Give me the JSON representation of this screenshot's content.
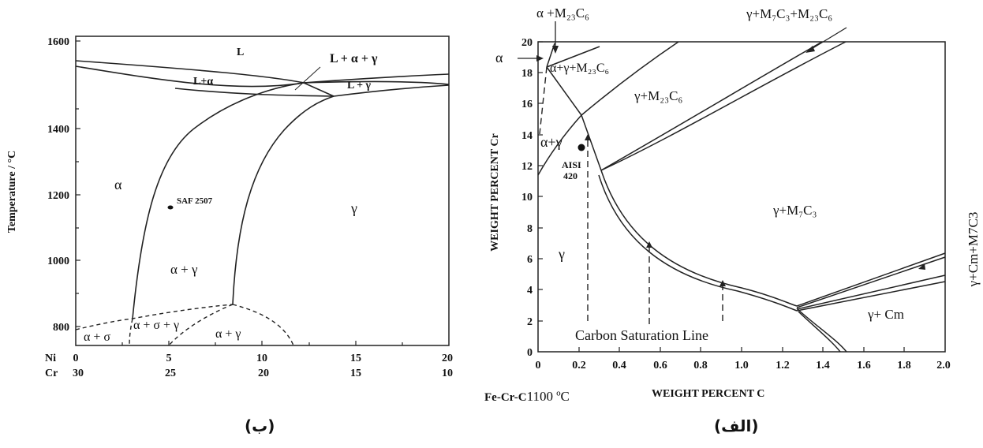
{
  "left_diagram": {
    "caption": "(ب)",
    "ylabel": "Temperature / °C",
    "y_ticks": [
      "800",
      "1000",
      "1200",
      "1400",
      "1600"
    ],
    "ni_label": "Ni",
    "cr_label": "Cr",
    "ni_ticks": [
      "0",
      "5",
      "10",
      "15",
      "20"
    ],
    "cr_ticks": [
      "30",
      "25",
      "20",
      "15",
      "10"
    ],
    "regions": {
      "L": "L",
      "L_alpha": "L+α",
      "L_alpha_gamma": "L + α + γ",
      "L_gamma": "L + γ",
      "alpha": "α",
      "gamma": "γ",
      "alpha_gamma": "α + γ",
      "alpha_sigma_gamma": "α + σ + γ",
      "alpha_sigma": "α + σ",
      "alpha_gamma_low": "α + γ"
    },
    "point_label": "SAF 2507"
  },
  "right_diagram": {
    "caption": "(الف)",
    "ylabel": "WEIGHT PERCENT Cr",
    "xlabel": "WEIGHT PERCENT  C",
    "system_label": "Fe-Cr-C",
    "temp_label": "1100 ºC",
    "x_ticks": [
      "0",
      "0.2",
      "0.4",
      "0.6",
      "0.8",
      "1.0",
      "1.2",
      "1.4",
      "1.6",
      "1.8",
      "2.0"
    ],
    "y_ticks": [
      "0",
      "2",
      "4",
      "6",
      "8",
      "10",
      "12",
      "14",
      "16",
      "18",
      "20"
    ],
    "regions": {
      "alpha_m23": "α +M₂₃C₆",
      "gamma_m7_m23": "γ+M₇C₃+M₂₃C₆",
      "alpha": "α",
      "alpha_gamma_m23": "α+γ+M₂₃C₆",
      "gamma_m23": "γ+M₂₃C₆",
      "alpha_gamma": "α+γ",
      "gamma_m7": "γ+M₇C₃",
      "gamma": "γ",
      "gamma_cm": "γ+ Cm",
      "gamma_cm_m7": "γ+Cm+M7C3"
    },
    "point_label_1": "AISI",
    "point_label_2": "420",
    "saturation_label": "Carbon Saturation Line"
  }
}
